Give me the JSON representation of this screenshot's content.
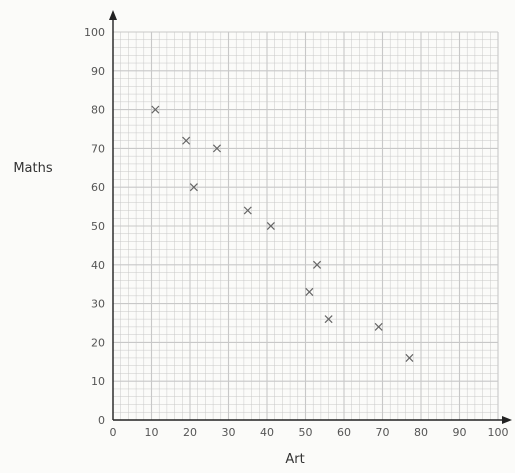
{
  "chart_data": {
    "type": "scatter",
    "title": "",
    "xlabel": "Art",
    "ylabel": "Maths",
    "xlim": [
      0,
      100
    ],
    "ylim": [
      0,
      100
    ],
    "x_ticks": [
      0,
      10,
      20,
      30,
      40,
      50,
      60,
      70,
      80,
      90,
      100
    ],
    "y_ticks": [
      0,
      10,
      20,
      30,
      40,
      50,
      60,
      70,
      80,
      90,
      100
    ],
    "grid": true,
    "marker": "x",
    "marker_color": "#666666",
    "grid_color": "#c8c8c8",
    "points": [
      {
        "x": 11,
        "y": 80
      },
      {
        "x": 19,
        "y": 72
      },
      {
        "x": 27,
        "y": 70
      },
      {
        "x": 21,
        "y": 60
      },
      {
        "x": 35,
        "y": 54
      },
      {
        "x": 41,
        "y": 50
      },
      {
        "x": 53,
        "y": 40
      },
      {
        "x": 51,
        "y": 33
      },
      {
        "x": 56,
        "y": 26
      },
      {
        "x": 69,
        "y": 24
      },
      {
        "x": 77,
        "y": 16
      }
    ]
  }
}
